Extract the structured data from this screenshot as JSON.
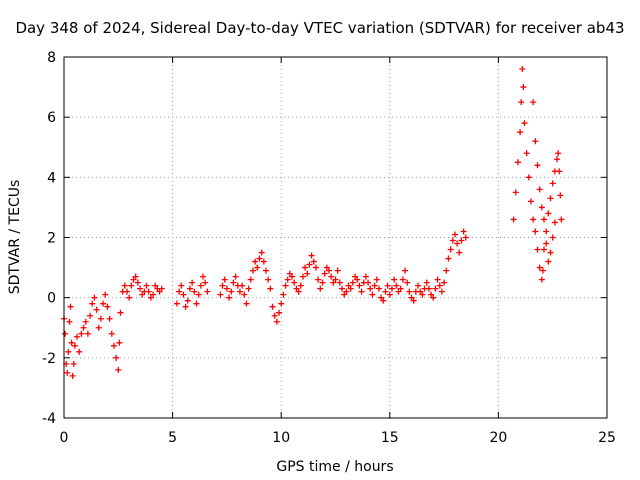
{
  "chart_data": {
    "type": "scatter",
    "title": "Day 348 of 2024, Sidereal Day-to-day VTEC variation (SDTVAR) for receiver ab43",
    "xlabel": "GPS time / hours",
    "ylabel": "SDTVAR / TECUs",
    "xlim": [
      0,
      25
    ],
    "ylim": [
      -4,
      8
    ],
    "xticks": [
      0,
      5,
      10,
      15,
      20,
      25
    ],
    "yticks": [
      -4,
      -2,
      0,
      2,
      4,
      6,
      8
    ],
    "x_tick_labels": [
      "0",
      "5",
      "10",
      "15",
      "20",
      "25"
    ],
    "y_tick_labels": [
      "-4",
      "-2",
      "0",
      "2",
      "4",
      "6",
      "8"
    ],
    "grid": true,
    "marker": "+",
    "color": "#ff0000",
    "series": [
      {
        "name": "SDTVAR",
        "points": [
          [
            0.0,
            -0.7
          ],
          [
            0.05,
            -1.2
          ],
          [
            0.1,
            -2.2
          ],
          [
            0.15,
            -2.5
          ],
          [
            0.2,
            -1.8
          ],
          [
            0.25,
            -0.8
          ],
          [
            0.3,
            -0.3
          ],
          [
            0.35,
            -1.5
          ],
          [
            0.4,
            -2.6
          ],
          [
            0.45,
            -2.2
          ],
          [
            0.5,
            -1.6
          ],
          [
            0.6,
            -1.3
          ],
          [
            0.7,
            -1.8
          ],
          [
            0.8,
            -1.2
          ],
          [
            0.9,
            -1.0
          ],
          [
            1.0,
            -0.8
          ],
          [
            1.1,
            -1.2
          ],
          [
            1.2,
            -0.6
          ],
          [
            1.3,
            -0.2
          ],
          [
            1.4,
            0.0
          ],
          [
            1.5,
            -0.4
          ],
          [
            1.6,
            -1.0
          ],
          [
            1.7,
            -0.7
          ],
          [
            1.8,
            -0.2
          ],
          [
            1.9,
            0.1
          ],
          [
            2.0,
            -0.3
          ],
          [
            2.1,
            -0.7
          ],
          [
            2.2,
            -1.2
          ],
          [
            2.3,
            -1.6
          ],
          [
            2.4,
            -2.0
          ],
          [
            2.5,
            -2.4
          ],
          [
            2.55,
            -1.5
          ],
          [
            2.6,
            -0.5
          ],
          [
            2.7,
            0.2
          ],
          [
            2.8,
            0.4
          ],
          [
            2.9,
            0.2
          ],
          [
            3.0,
            0.0
          ],
          [
            3.1,
            0.4
          ],
          [
            3.2,
            0.6
          ],
          [
            3.3,
            0.7
          ],
          [
            3.4,
            0.5
          ],
          [
            3.5,
            0.3
          ],
          [
            3.6,
            0.1
          ],
          [
            3.7,
            0.2
          ],
          [
            3.8,
            0.4
          ],
          [
            3.9,
            0.2
          ],
          [
            4.0,
            0.0
          ],
          [
            4.1,
            0.1
          ],
          [
            4.2,
            0.4
          ],
          [
            4.3,
            0.3
          ],
          [
            4.4,
            0.2
          ],
          [
            4.5,
            0.3
          ],
          [
            5.2,
            -0.2
          ],
          [
            5.3,
            0.2
          ],
          [
            5.4,
            0.4
          ],
          [
            5.5,
            0.1
          ],
          [
            5.6,
            -0.3
          ],
          [
            5.7,
            -0.1
          ],
          [
            5.8,
            0.3
          ],
          [
            5.9,
            0.5
          ],
          [
            6.0,
            0.2
          ],
          [
            6.1,
            -0.2
          ],
          [
            6.2,
            0.1
          ],
          [
            6.3,
            0.4
          ],
          [
            6.4,
            0.7
          ],
          [
            6.5,
            0.5
          ],
          [
            6.6,
            0.2
          ],
          [
            7.2,
            0.1
          ],
          [
            7.3,
            0.4
          ],
          [
            7.4,
            0.6
          ],
          [
            7.5,
            0.3
          ],
          [
            7.6,
            0.0
          ],
          [
            7.7,
            0.2
          ],
          [
            7.8,
            0.5
          ],
          [
            7.9,
            0.7
          ],
          [
            8.0,
            0.4
          ],
          [
            8.1,
            0.2
          ],
          [
            8.2,
            0.4
          ],
          [
            8.3,
            0.1
          ],
          [
            8.4,
            -0.2
          ],
          [
            8.5,
            0.3
          ],
          [
            8.6,
            0.6
          ],
          [
            8.7,
            0.9
          ],
          [
            8.8,
            1.2
          ],
          [
            8.9,
            1.0
          ],
          [
            9.0,
            1.3
          ],
          [
            9.1,
            1.5
          ],
          [
            9.2,
            1.2
          ],
          [
            9.3,
            0.9
          ],
          [
            9.4,
            0.6
          ],
          [
            9.5,
            0.3
          ],
          [
            9.6,
            -0.3
          ],
          [
            9.7,
            -0.6
          ],
          [
            9.8,
            -0.8
          ],
          [
            9.9,
            -0.5
          ],
          [
            10.0,
            -0.2
          ],
          [
            10.1,
            0.1
          ],
          [
            10.2,
            0.4
          ],
          [
            10.3,
            0.6
          ],
          [
            10.4,
            0.8
          ],
          [
            10.5,
            0.7
          ],
          [
            10.6,
            0.5
          ],
          [
            10.7,
            0.3
          ],
          [
            10.8,
            0.2
          ],
          [
            10.9,
            0.4
          ],
          [
            11.0,
            0.7
          ],
          [
            11.1,
            1.0
          ],
          [
            11.2,
            0.8
          ],
          [
            11.3,
            1.1
          ],
          [
            11.4,
            1.4
          ],
          [
            11.5,
            1.2
          ],
          [
            11.6,
            1.0
          ],
          [
            11.7,
            0.6
          ],
          [
            11.8,
            0.3
          ],
          [
            11.9,
            0.5
          ],
          [
            12.0,
            0.8
          ],
          [
            12.1,
            1.0
          ],
          [
            12.2,
            0.9
          ],
          [
            12.3,
            0.7
          ],
          [
            12.4,
            0.5
          ],
          [
            12.5,
            0.6
          ],
          [
            12.6,
            0.9
          ],
          [
            12.7,
            0.5
          ],
          [
            12.8,
            0.3
          ],
          [
            12.9,
            0.1
          ],
          [
            13.0,
            0.2
          ],
          [
            13.1,
            0.4
          ],
          [
            13.2,
            0.3
          ],
          [
            13.3,
            0.5
          ],
          [
            13.4,
            0.7
          ],
          [
            13.5,
            0.6
          ],
          [
            13.6,
            0.4
          ],
          [
            13.7,
            0.2
          ],
          [
            13.8,
            0.5
          ],
          [
            13.9,
            0.7
          ],
          [
            14.0,
            0.5
          ],
          [
            14.1,
            0.3
          ],
          [
            14.2,
            0.1
          ],
          [
            14.3,
            0.4
          ],
          [
            14.4,
            0.6
          ],
          [
            14.5,
            0.3
          ],
          [
            14.6,
            0.0
          ],
          [
            14.7,
            -0.1
          ],
          [
            14.8,
            0.2
          ],
          [
            14.9,
            0.4
          ],
          [
            15.0,
            0.1
          ],
          [
            15.1,
            0.3
          ],
          [
            15.2,
            0.6
          ],
          [
            15.3,
            0.4
          ],
          [
            15.4,
            0.2
          ],
          [
            15.5,
            0.3
          ],
          [
            15.6,
            0.6
          ],
          [
            15.7,
            0.9
          ],
          [
            15.8,
            0.5
          ],
          [
            15.9,
            0.2
          ],
          [
            16.0,
            0.0
          ],
          [
            16.1,
            -0.1
          ],
          [
            16.2,
            0.2
          ],
          [
            16.3,
            0.4
          ],
          [
            16.4,
            0.2
          ],
          [
            16.5,
            0.1
          ],
          [
            16.6,
            0.3
          ],
          [
            16.7,
            0.5
          ],
          [
            16.8,
            0.3
          ],
          [
            16.9,
            0.1
          ],
          [
            17.0,
            0.0
          ],
          [
            17.1,
            0.3
          ],
          [
            17.2,
            0.6
          ],
          [
            17.3,
            0.4
          ],
          [
            17.4,
            0.2
          ],
          [
            17.5,
            0.5
          ],
          [
            17.6,
            0.9
          ],
          [
            17.7,
            1.3
          ],
          [
            17.8,
            1.6
          ],
          [
            17.9,
            1.9
          ],
          [
            18.0,
            2.1
          ],
          [
            18.1,
            1.8
          ],
          [
            18.2,
            1.5
          ],
          [
            18.3,
            1.9
          ],
          [
            18.4,
            2.2
          ],
          [
            18.5,
            2.0
          ],
          [
            20.7,
            2.6
          ],
          [
            20.8,
            3.5
          ],
          [
            20.9,
            4.5
          ],
          [
            21.0,
            5.5
          ],
          [
            21.05,
            6.5
          ],
          [
            21.1,
            7.6
          ],
          [
            21.15,
            7.0
          ],
          [
            21.2,
            5.8
          ],
          [
            21.3,
            4.8
          ],
          [
            21.4,
            4.0
          ],
          [
            21.5,
            3.2
          ],
          [
            21.6,
            2.6
          ],
          [
            21.7,
            2.2
          ],
          [
            21.8,
            1.6
          ],
          [
            21.9,
            1.0
          ],
          [
            22.0,
            0.6
          ],
          [
            22.05,
            0.9
          ],
          [
            22.1,
            1.6
          ],
          [
            22.2,
            2.2
          ],
          [
            22.3,
            2.8
          ],
          [
            22.4,
            3.3
          ],
          [
            22.5,
            3.8
          ],
          [
            22.6,
            4.2
          ],
          [
            22.7,
            4.6
          ],
          [
            22.75,
            4.8
          ],
          [
            22.8,
            4.2
          ],
          [
            22.85,
            3.4
          ],
          [
            22.9,
            2.6
          ],
          [
            21.6,
            6.5
          ],
          [
            21.7,
            5.2
          ],
          [
            21.8,
            4.4
          ],
          [
            21.9,
            3.6
          ],
          [
            22.0,
            3.0
          ],
          [
            22.1,
            2.6
          ],
          [
            22.2,
            1.8
          ],
          [
            22.3,
            1.2
          ],
          [
            22.4,
            1.5
          ],
          [
            22.5,
            2.0
          ],
          [
            22.6,
            2.5
          ]
        ]
      }
    ]
  }
}
